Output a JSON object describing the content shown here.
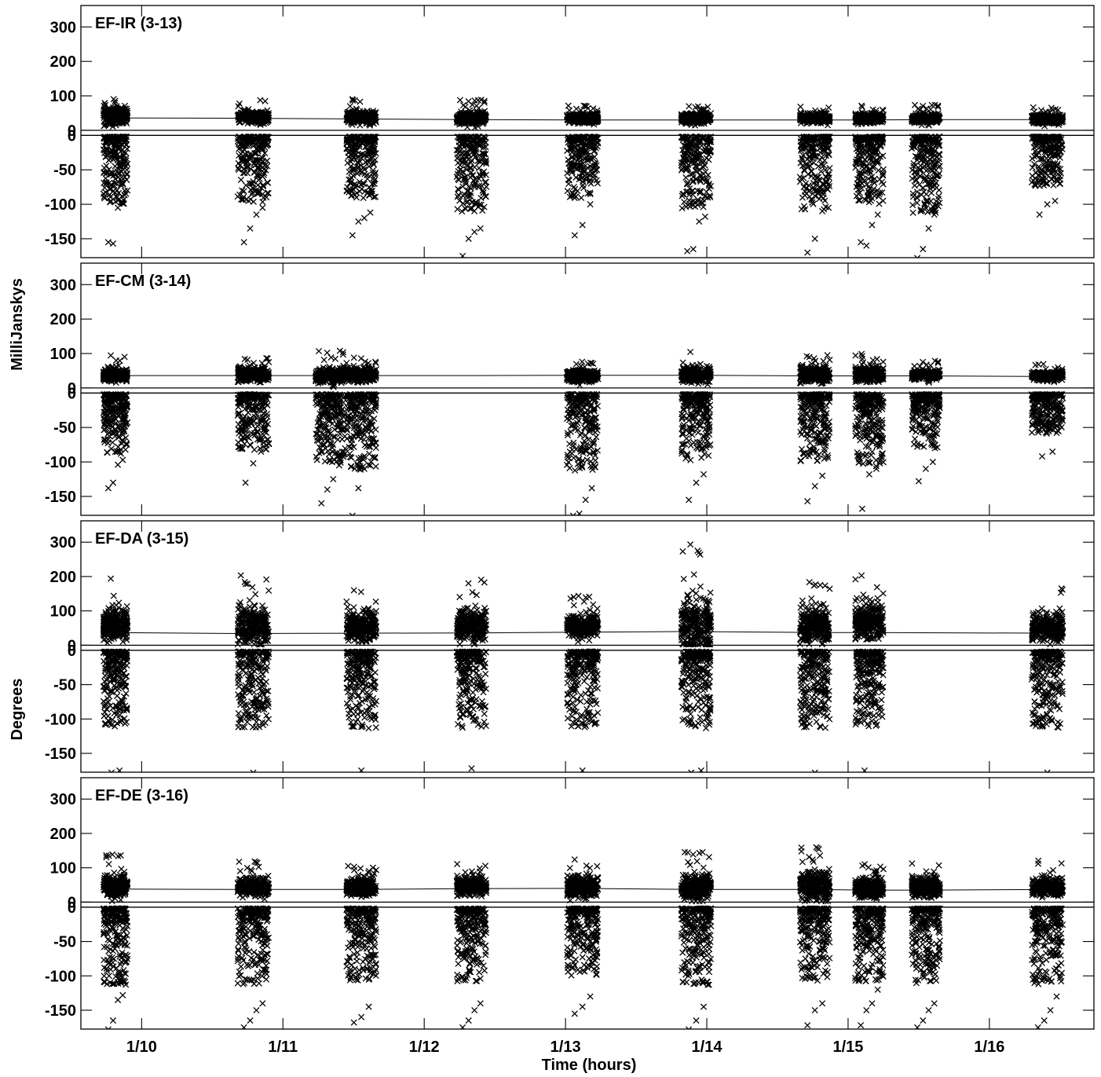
{
  "figure": {
    "ylabel_top": "MilliJanskys",
    "ylabel_bottom": "Degrees",
    "xlabel": "Time (hours)"
  },
  "chart_data": {
    "type": "scatter",
    "x_unit": "days since 1/9 00:00",
    "xlim": [
      0.57,
      7.74
    ],
    "x_ticks": [
      1,
      2,
      3,
      4,
      5,
      6,
      7
    ],
    "x_tick_labels": [
      "1/10",
      "1/11",
      "1/12",
      "1/13",
      "1/14",
      "1/15",
      "1/16"
    ],
    "ylim": [
      -180,
      350
    ],
    "y_ticks": [
      300,
      200,
      100,
      0,
      -50,
      -100,
      -150
    ],
    "y_tick_labels": [
      "300",
      "200",
      "100",
      "0",
      "-50",
      "-100",
      "-150"
    ],
    "marker": "x",
    "grid": false,
    "panels": [
      {
        "title": "EF-IR (3-13)",
        "model_line": {
          "x": [
            0.78,
            1.7,
            2.5,
            3.3,
            4.1,
            4.9,
            5.75,
            6.12,
            6.55,
            7.5
          ],
          "y": [
            36,
            35,
            33,
            31,
            30,
            30,
            30,
            30,
            31,
            31
          ]
        },
        "scans": [
          {
            "x_start": 0.73,
            "x_end": 0.9,
            "upper_mean": 40,
            "upper_max": 105,
            "lower_min": -160,
            "outliers": [
              -155,
              -157,
              -105,
              -97
            ]
          },
          {
            "x_start": 1.68,
            "x_end": 1.9,
            "upper_mean": 38,
            "upper_max": 92,
            "lower_min": -155,
            "outliers": [
              -155,
              -135,
              -115,
              -105
            ]
          },
          {
            "x_start": 2.45,
            "x_end": 2.66,
            "upper_mean": 38,
            "upper_max": 92,
            "lower_min": -145,
            "outliers": [
              -145,
              -125,
              -120,
              -112
            ]
          },
          {
            "x_start": 3.23,
            "x_end": 3.44,
            "upper_mean": 36,
            "upper_max": 90,
            "lower_min": -175,
            "outliers": [
              -175,
              -150,
              -140,
              -135
            ]
          },
          {
            "x_start": 4.01,
            "x_end": 4.23,
            "upper_mean": 35,
            "upper_max": 75,
            "lower_min": -145,
            "outliers": [
              -145,
              -130,
              -100
            ]
          },
          {
            "x_start": 4.82,
            "x_end": 5.03,
            "upper_mean": 35,
            "upper_max": 80,
            "lower_min": -168,
            "outliers": [
              -168,
              -165,
              -125,
              -118
            ]
          },
          {
            "x_start": 5.66,
            "x_end": 5.87,
            "upper_mean": 35,
            "upper_max": 72,
            "lower_min": -170,
            "outliers": [
              -170,
              -150,
              -110
            ]
          },
          {
            "x_start": 6.05,
            "x_end": 6.25,
            "upper_mean": 35,
            "upper_max": 72,
            "lower_min": -160,
            "outliers": [
              -155,
              -160,
              -130,
              -115
            ]
          },
          {
            "x_start": 6.45,
            "x_end": 6.65,
            "upper_mean": 35,
            "upper_max": 75,
            "lower_min": -178,
            "outliers": [
              -178,
              -165,
              -135,
              -115
            ]
          },
          {
            "x_start": 7.3,
            "x_end": 7.52,
            "upper_mean": 33,
            "upper_max": 70,
            "lower_min": -115,
            "outliers": [
              -115,
              -100,
              -95
            ]
          }
        ]
      },
      {
        "title": "EF-CM (3-14)",
        "model_line": {
          "x": [
            0.78,
            1.7,
            2.5,
            3.3,
            4.1,
            4.9,
            5.75,
            6.12,
            6.55,
            7.5
          ],
          "y": [
            36,
            36,
            36,
            36,
            37,
            37,
            35,
            35,
            35,
            33
          ]
        },
        "scans": [
          {
            "x_start": 0.73,
            "x_end": 0.9,
            "upper_mean": 38,
            "upper_max": 95,
            "lower_min": -140,
            "outliers": [
              -138,
              -130,
              -104,
              -97
            ]
          },
          {
            "x_start": 1.68,
            "x_end": 1.9,
            "upper_mean": 38,
            "upper_max": 95,
            "lower_min": -130,
            "outliers": [
              -130,
              -102,
              -85
            ]
          },
          {
            "x_start": 2.45,
            "x_end": 2.66,
            "upper_mean": 38,
            "upper_max": 95,
            "lower_min": -180,
            "outliers": [
              -178,
              -138,
              -110,
              -105
            ]
          },
          {
            "x_start": 2.23,
            "x_end": 2.44,
            "upper_mean": 38,
            "upper_max": 110,
            "lower_min": -160,
            "outliers": [
              -160,
              -140,
              -125,
              -105
            ]
          },
          {
            "x_start": 4.01,
            "x_end": 4.23,
            "upper_mean": 35,
            "upper_max": 85,
            "lower_min": -178,
            "outliers": [
              -178,
              -175,
              -155,
              -138
            ]
          },
          {
            "x_start": 4.82,
            "x_end": 5.03,
            "upper_mean": 38,
            "upper_max": 105,
            "lower_min": -155,
            "outliers": [
              -155,
              -130,
              -118
            ]
          },
          {
            "x_start": 5.66,
            "x_end": 5.87,
            "upper_mean": 38,
            "upper_max": 105,
            "lower_min": -157,
            "outliers": [
              -157,
              -135,
              -120
            ]
          },
          {
            "x_start": 6.05,
            "x_end": 6.25,
            "upper_mean": 40,
            "upper_max": 100,
            "lower_min": -168,
            "outliers": [
              -168,
              -118,
              -110
            ]
          },
          {
            "x_start": 6.45,
            "x_end": 6.65,
            "upper_mean": 38,
            "upper_max": 80,
            "lower_min": -128,
            "outliers": [
              -128,
              -110,
              -100
            ]
          },
          {
            "x_start": 7.3,
            "x_end": 7.52,
            "upper_mean": 35,
            "upper_max": 70,
            "lower_min": -92,
            "outliers": [
              -92,
              -85
            ]
          }
        ]
      },
      {
        "title": "EF-DA (3-15)",
        "model_line": {
          "x": [
            0.78,
            1.7,
            2.5,
            3.3,
            4.1,
            4.9,
            5.75,
            6.12,
            7.5
          ],
          "y": [
            37,
            34,
            35,
            36,
            38,
            40,
            37,
            37,
            35
          ]
        },
        "scans": [
          {
            "x_start": 0.73,
            "x_end": 0.9,
            "upper_mean": 60,
            "upper_max": 195,
            "lower_min": -180,
            "outliers": [
              -178,
              -175
            ]
          },
          {
            "x_start": 1.68,
            "x_end": 1.9,
            "upper_mean": 55,
            "upper_max": 215,
            "lower_min": -180,
            "outliers": [
              -178
            ]
          },
          {
            "x_start": 2.45,
            "x_end": 2.66,
            "upper_mean": 55,
            "upper_max": 175,
            "lower_min": -180,
            "outliers": [
              -175
            ]
          },
          {
            "x_start": 3.23,
            "x_end": 3.44,
            "upper_mean": 58,
            "upper_max": 195,
            "lower_min": -180,
            "outliers": [
              -172
            ]
          },
          {
            "x_start": 4.01,
            "x_end": 4.23,
            "upper_mean": 55,
            "upper_max": 145,
            "lower_min": -178,
            "outliers": [
              -175
            ]
          },
          {
            "x_start": 4.82,
            "x_end": 5.03,
            "upper_mean": 60,
            "upper_max": 295,
            "lower_min": -180,
            "outliers": [
              -178,
              -175
            ]
          },
          {
            "x_start": 5.66,
            "x_end": 5.87,
            "upper_mean": 60,
            "upper_max": 220,
            "lower_min": -180,
            "outliers": [
              -178
            ]
          },
          {
            "x_start": 6.05,
            "x_end": 6.25,
            "upper_mean": 70,
            "upper_max": 205,
            "lower_min": -175,
            "outliers": [
              -175,
              -95
            ]
          },
          {
            "x_start": 7.3,
            "x_end": 7.52,
            "upper_mean": 55,
            "upper_max": 185,
            "lower_min": -180,
            "outliers": [
              -178
            ]
          }
        ]
      },
      {
        "title": "EF-DE (3-16)",
        "model_line": {
          "x": [
            0.78,
            1.7,
            2.5,
            3.3,
            4.1,
            4.9,
            5.75,
            6.12,
            6.55,
            7.5
          ],
          "y": [
            38,
            37,
            37,
            39,
            40,
            37,
            37,
            35,
            35,
            37
          ]
        },
        "scans": [
          {
            "x_start": 0.73,
            "x_end": 0.9,
            "upper_mean": 48,
            "upper_max": 140,
            "lower_min": -180,
            "outliers": [
              -178,
              -165,
              -135,
              -128
            ]
          },
          {
            "x_start": 1.68,
            "x_end": 1.9,
            "upper_mean": 45,
            "upper_max": 125,
            "lower_min": -178,
            "outliers": [
              -175,
              -165,
              -150,
              -140
            ]
          },
          {
            "x_start": 2.45,
            "x_end": 2.66,
            "upper_mean": 45,
            "upper_max": 120,
            "lower_min": -170,
            "outliers": [
              -168,
              -160,
              -145
            ]
          },
          {
            "x_start": 3.23,
            "x_end": 3.44,
            "upper_mean": 45,
            "upper_max": 118,
            "lower_min": -175,
            "outliers": [
              -175,
              -165,
              -150,
              -140
            ]
          },
          {
            "x_start": 4.01,
            "x_end": 4.23,
            "upper_mean": 45,
            "upper_max": 135,
            "lower_min": -160,
            "outliers": [
              -155,
              -145,
              -130
            ]
          },
          {
            "x_start": 4.82,
            "x_end": 5.03,
            "upper_mean": 45,
            "upper_max": 150,
            "lower_min": -180,
            "outliers": [
              -178,
              -165,
              -145
            ]
          },
          {
            "x_start": 5.66,
            "x_end": 5.87,
            "upper_mean": 48,
            "upper_max": 170,
            "lower_min": -172,
            "outliers": [
              -172,
              -150,
              -140
            ]
          },
          {
            "x_start": 6.05,
            "x_end": 6.25,
            "upper_mean": 42,
            "upper_max": 125,
            "lower_min": -172,
            "outliers": [
              -172,
              -150,
              -140,
              -120
            ]
          },
          {
            "x_start": 6.45,
            "x_end": 6.65,
            "upper_mean": 42,
            "upper_max": 120,
            "lower_min": -175,
            "outliers": [
              -175,
              -165,
              -150,
              -140
            ]
          },
          {
            "x_start": 7.3,
            "x_end": 7.52,
            "upper_mean": 45,
            "upper_max": 125,
            "lower_min": -178,
            "outliers": [
              -175,
              -165,
              -150,
              -130
            ]
          }
        ]
      }
    ]
  }
}
